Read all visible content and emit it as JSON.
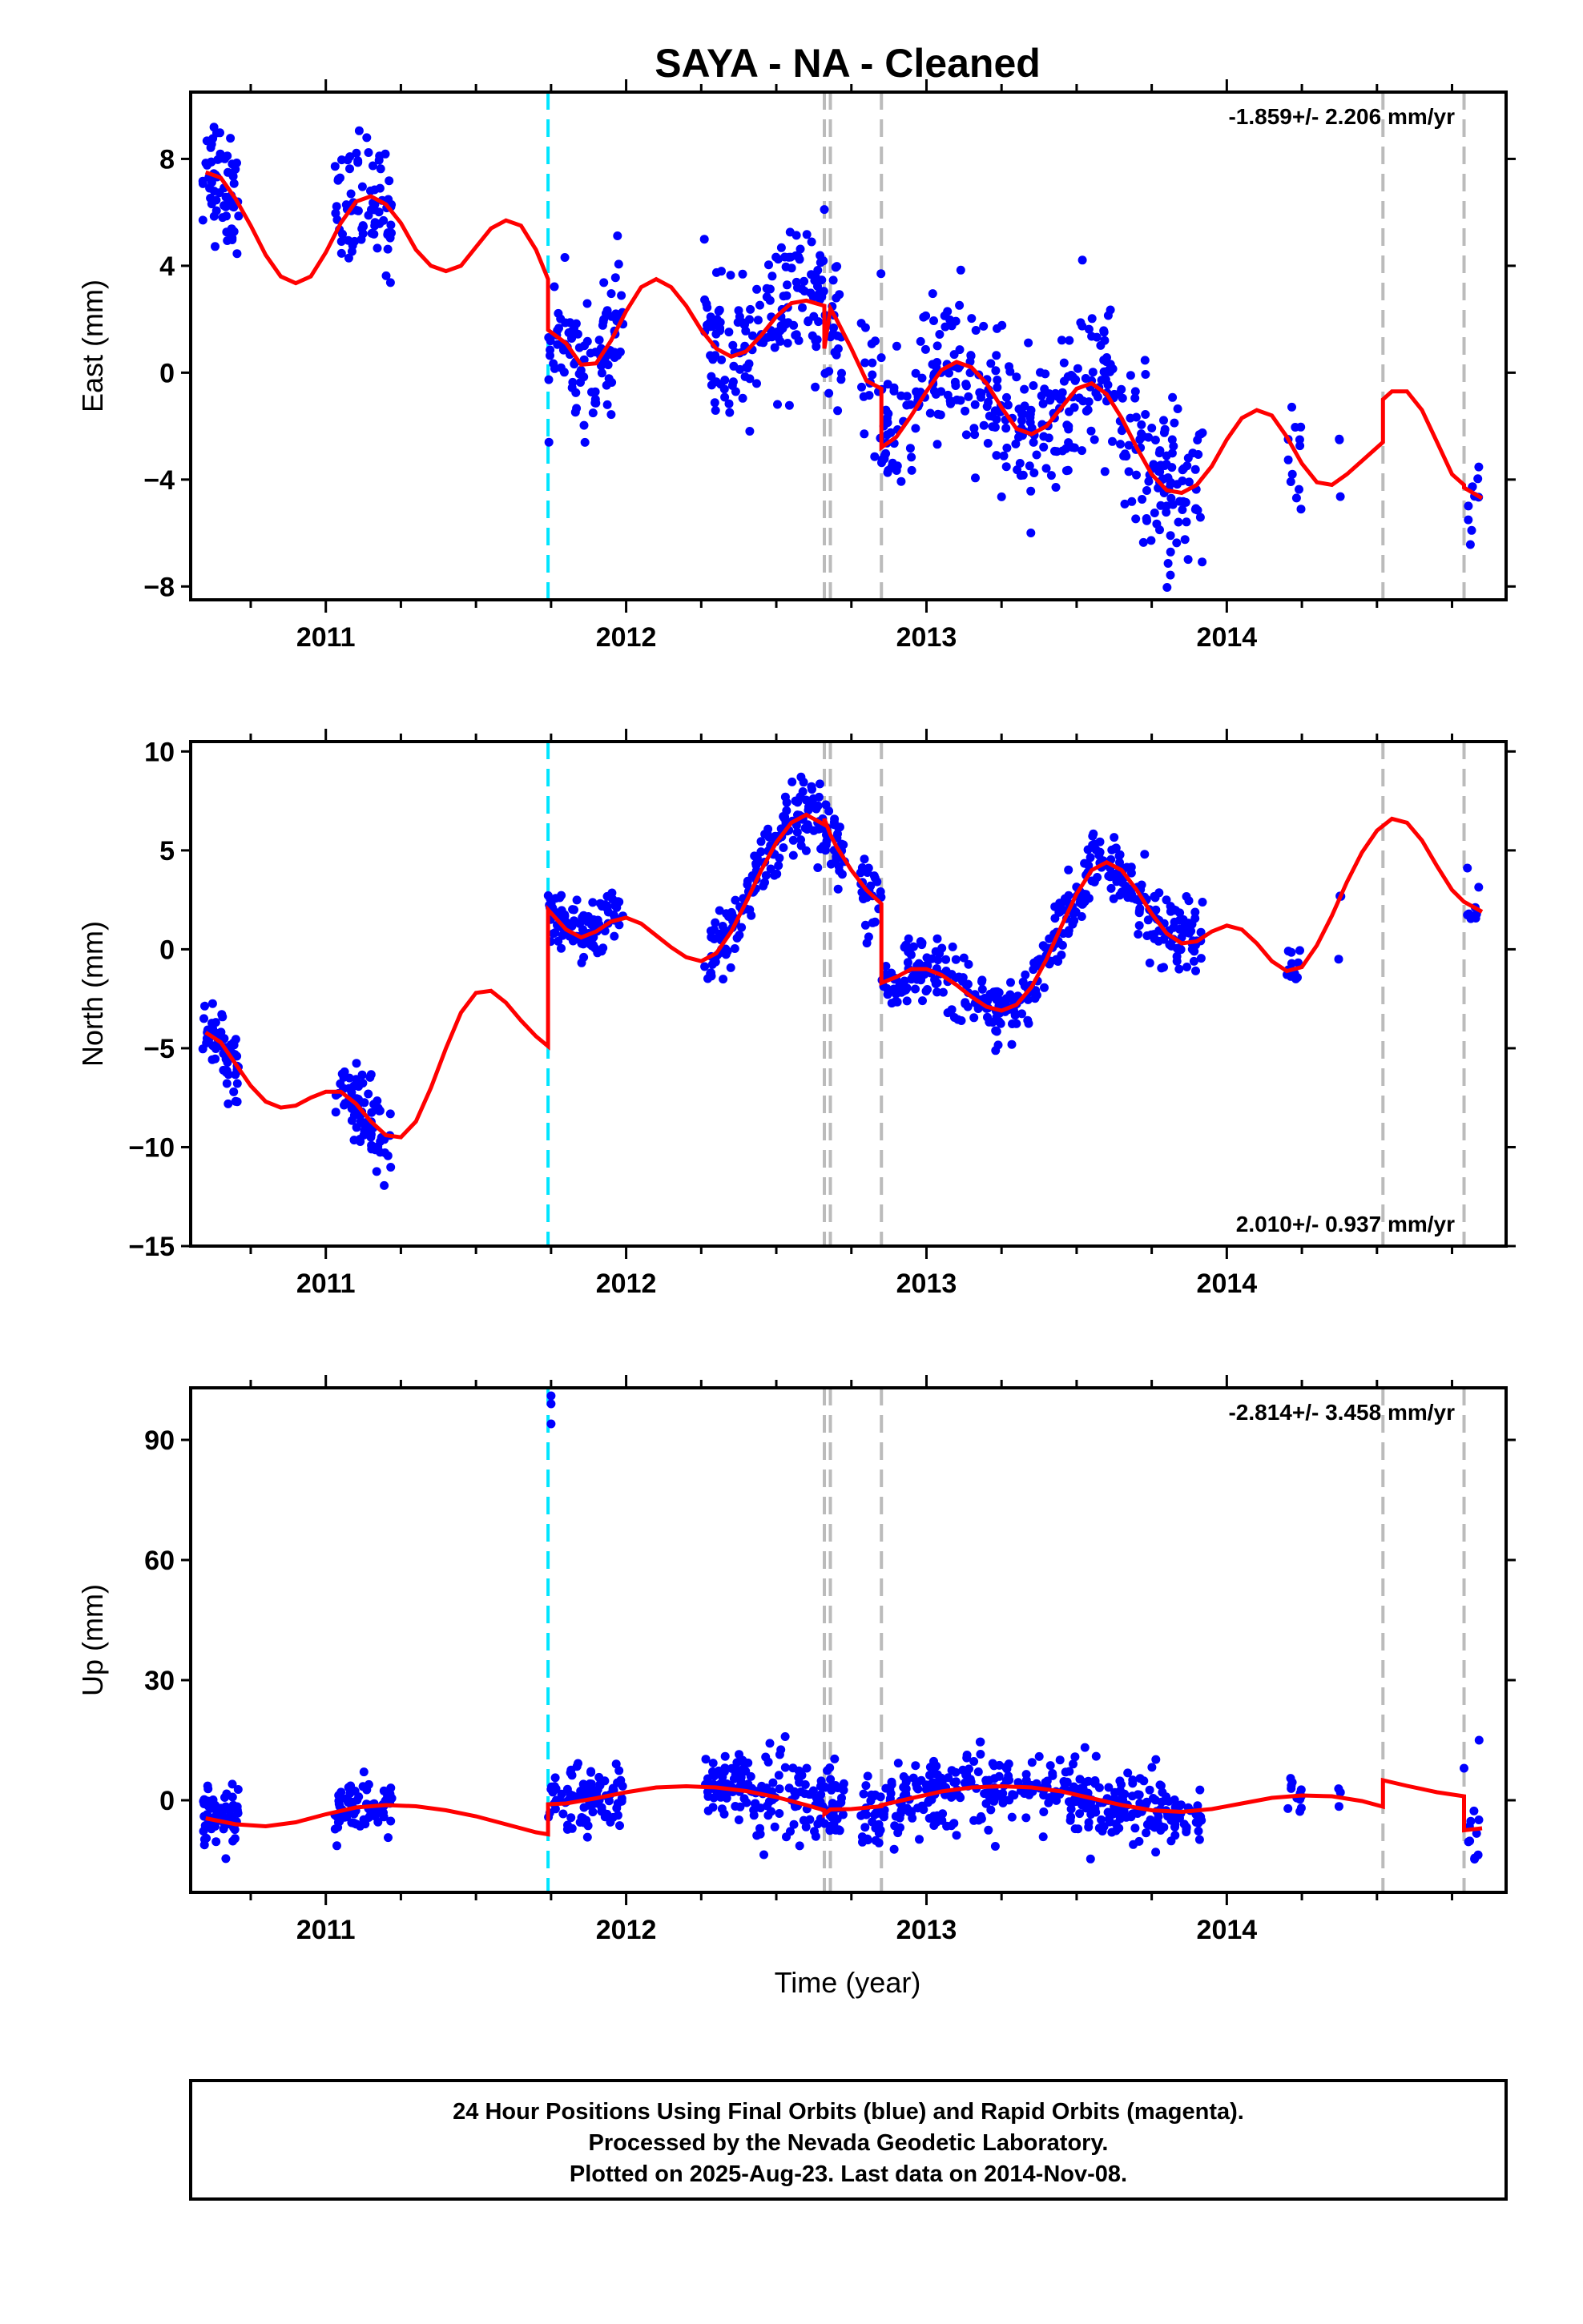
{
  "title": "SAYA  - NA - Cleaned",
  "colors": {
    "data_points": "#0000ff",
    "model_curve": "#ff0000",
    "equipment_change": "#00e5ff",
    "other_offsets": "#bbbbbb",
    "frame": "#000000"
  },
  "chart_data": [
    {
      "type": "scatter",
      "panel": "east",
      "ylabel": "East (mm)",
      "xlim": [
        2010.55,
        2014.93
      ],
      "ylim": [
        -8.5,
        10.5
      ],
      "yticks": [
        -8,
        -4,
        0,
        4,
        8
      ],
      "xtick_labels": [
        "2011",
        "2012",
        "2013",
        "2014"
      ],
      "rate_label": "-1.859+/- 2.206 mm/yr",
      "rate_position": "top-right",
      "offset_lines_cyan": [
        2011.74
      ],
      "offset_lines_gray": [
        2012.66,
        2012.68,
        2012.85,
        2014.52,
        2014.79
      ],
      "model_curve": [
        [
          2010.6,
          7.5
        ],
        [
          2010.65,
          7.3
        ],
        [
          2010.7,
          6.5
        ],
        [
          2010.75,
          5.5
        ],
        [
          2010.8,
          4.4
        ],
        [
          2010.85,
          3.6
        ],
        [
          2010.9,
          3.35
        ],
        [
          2010.95,
          3.6
        ],
        [
          2011.0,
          4.5
        ],
        [
          2011.05,
          5.6
        ],
        [
          2011.1,
          6.4
        ],
        [
          2011.15,
          6.6
        ],
        [
          2011.2,
          6.3
        ],
        [
          2011.25,
          5.6
        ],
        [
          2011.3,
          4.6
        ],
        [
          2011.35,
          4.0
        ],
        [
          2011.4,
          3.8
        ],
        [
          2011.45,
          4.0
        ],
        [
          2011.5,
          4.7
        ],
        [
          2011.55,
          5.4
        ],
        [
          2011.6,
          5.7
        ],
        [
          2011.65,
          5.5
        ],
        [
          2011.7,
          4.6
        ],
        [
          2011.74,
          3.5
        ],
        [
          2011.74,
          1.6
        ],
        [
          2011.8,
          1.1
        ],
        [
          2011.85,
          0.3
        ],
        [
          2011.9,
          0.35
        ],
        [
          2011.95,
          1.2
        ],
        [
          2012.0,
          2.3
        ],
        [
          2012.05,
          3.2
        ],
        [
          2012.1,
          3.5
        ],
        [
          2012.15,
          3.2
        ],
        [
          2012.2,
          2.5
        ],
        [
          2012.25,
          1.6
        ],
        [
          2012.3,
          0.9
        ],
        [
          2012.35,
          0.6
        ],
        [
          2012.4,
          0.8
        ],
        [
          2012.45,
          1.4
        ],
        [
          2012.5,
          2.1
        ],
        [
          2012.55,
          2.6
        ],
        [
          2012.6,
          2.7
        ],
        [
          2012.66,
          2.5
        ],
        [
          2012.66,
          0.9
        ],
        [
          2012.68,
          2.4
        ],
        [
          2012.7,
          2.0
        ],
        [
          2012.75,
          0.9
        ],
        [
          2012.8,
          -0.3
        ],
        [
          2012.85,
          -0.6
        ],
        [
          2012.85,
          -2.8
        ],
        [
          2012.9,
          -2.4
        ],
        [
          2012.95,
          -1.6
        ],
        [
          2013.0,
          -0.7
        ],
        [
          2013.05,
          0.1
        ],
        [
          2013.1,
          0.4
        ],
        [
          2013.15,
          0.2
        ],
        [
          2013.2,
          -0.4
        ],
        [
          2013.25,
          -1.3
        ],
        [
          2013.3,
          -2.1
        ],
        [
          2013.35,
          -2.3
        ],
        [
          2013.4,
          -2.0
        ],
        [
          2013.45,
          -1.3
        ],
        [
          2013.5,
          -0.6
        ],
        [
          2013.55,
          -0.4
        ],
        [
          2013.6,
          -0.8
        ],
        [
          2013.65,
          -1.7
        ],
        [
          2013.7,
          -2.8
        ],
        [
          2013.75,
          -3.8
        ],
        [
          2013.8,
          -4.4
        ],
        [
          2013.85,
          -4.5
        ],
        [
          2013.9,
          -4.2
        ],
        [
          2013.95,
          -3.5
        ],
        [
          2014.0,
          -2.5
        ],
        [
          2014.05,
          -1.7
        ],
        [
          2014.1,
          -1.4
        ],
        [
          2014.15,
          -1.6
        ],
        [
          2014.2,
          -2.4
        ],
        [
          2014.25,
          -3.4
        ],
        [
          2014.3,
          -4.1
        ],
        [
          2014.35,
          -4.2
        ],
        [
          2014.4,
          -3.8
        ],
        [
          2014.45,
          -3.3
        ],
        [
          2014.52,
          -2.6
        ],
        [
          2014.52,
          -1.0
        ],
        [
          2014.55,
          -0.7
        ],
        [
          2014.6,
          -0.7
        ],
        [
          2014.65,
          -1.4
        ],
        [
          2014.7,
          -2.6
        ],
        [
          2014.75,
          -3.8
        ],
        [
          2014.79,
          -4.2
        ],
        [
          2014.79,
          -4.3
        ],
        [
          2014.85,
          -4.7
        ]
      ],
      "observation_segments": [
        {
          "x_start": 2010.59,
          "x_end": 2010.71,
          "n": 65,
          "spread": 1.1
        },
        {
          "x_start": 2011.03,
          "x_end": 2011.22,
          "n": 75,
          "spread": 1.2
        },
        {
          "x_start": 2011.74,
          "x_end": 2011.99,
          "n": 100,
          "spread": 1.2
        },
        {
          "x_start": 2012.26,
          "x_end": 2012.73,
          "n": 180,
          "spread": 1.3
        },
        {
          "x_start": 2012.78,
          "x_end": 2013.43,
          "n": 220,
          "spread": 1.4
        },
        {
          "x_start": 2013.43,
          "x_end": 2013.92,
          "n": 190,
          "spread": 1.5
        },
        {
          "x_start": 2014.2,
          "x_end": 2014.25,
          "n": 12,
          "spread": 1.4
        },
        {
          "x_start": 2014.37,
          "x_end": 2014.38,
          "n": 3,
          "spread": 2.0
        },
        {
          "x_start": 2014.8,
          "x_end": 2014.84,
          "n": 10,
          "spread": 1.5
        }
      ]
    },
    {
      "type": "scatter",
      "panel": "north",
      "ylabel": "North (mm)",
      "xlim": [
        2010.55,
        2014.93
      ],
      "ylim": [
        -15,
        10.5
      ],
      "yticks": [
        -15,
        -10,
        -5,
        0,
        5,
        10
      ],
      "xtick_labels": [
        "2011",
        "2012",
        "2013",
        "2014"
      ],
      "rate_label": "2.010+/- 0.937 mm/yr",
      "rate_position": "bottom-right",
      "offset_lines_cyan": [
        2011.74
      ],
      "offset_lines_gray": [
        2012.66,
        2012.68,
        2012.85,
        2014.52,
        2014.79
      ],
      "model_curve": [
        [
          2010.6,
          -4.2
        ],
        [
          2010.65,
          -4.7
        ],
        [
          2010.7,
          -5.8
        ],
        [
          2010.75,
          -6.9
        ],
        [
          2010.8,
          -7.7
        ],
        [
          2010.85,
          -8.0
        ],
        [
          2010.9,
          -7.9
        ],
        [
          2010.95,
          -7.5
        ],
        [
          2011.0,
          -7.2
        ],
        [
          2011.05,
          -7.2
        ],
        [
          2011.1,
          -7.8
        ],
        [
          2011.15,
          -8.7
        ],
        [
          2011.2,
          -9.4
        ],
        [
          2011.25,
          -9.5
        ],
        [
          2011.3,
          -8.7
        ],
        [
          2011.35,
          -7.0
        ],
        [
          2011.4,
          -5.0
        ],
        [
          2011.45,
          -3.2
        ],
        [
          2011.5,
          -2.2
        ],
        [
          2011.55,
          -2.1
        ],
        [
          2011.6,
          -2.7
        ],
        [
          2011.65,
          -3.6
        ],
        [
          2011.7,
          -4.4
        ],
        [
          2011.74,
          -4.9
        ],
        [
          2011.74,
          2.0
        ],
        [
          2011.8,
          1.0
        ],
        [
          2011.85,
          0.6
        ],
        [
          2011.9,
          0.9
        ],
        [
          2011.95,
          1.4
        ],
        [
          2012.0,
          1.6
        ],
        [
          2012.05,
          1.3
        ],
        [
          2012.1,
          0.7
        ],
        [
          2012.15,
          0.1
        ],
        [
          2012.2,
          -0.4
        ],
        [
          2012.25,
          -0.6
        ],
        [
          2012.3,
          -0.2
        ],
        [
          2012.35,
          0.9
        ],
        [
          2012.4,
          2.4
        ],
        [
          2012.45,
          4.0
        ],
        [
          2012.5,
          5.4
        ],
        [
          2012.55,
          6.4
        ],
        [
          2012.6,
          6.8
        ],
        [
          2012.66,
          6.3
        ],
        [
          2012.66,
          6.6
        ],
        [
          2012.68,
          5.8
        ],
        [
          2012.7,
          5.2
        ],
        [
          2012.75,
          4.0
        ],
        [
          2012.8,
          3.0
        ],
        [
          2012.85,
          2.3
        ],
        [
          2012.85,
          -1.7
        ],
        [
          2012.9,
          -1.4
        ],
        [
          2012.95,
          -1.0
        ],
        [
          2013.0,
          -1.0
        ],
        [
          2013.05,
          -1.3
        ],
        [
          2013.1,
          -1.8
        ],
        [
          2013.15,
          -2.4
        ],
        [
          2013.2,
          -2.9
        ],
        [
          2013.25,
          -3.1
        ],
        [
          2013.3,
          -2.8
        ],
        [
          2013.35,
          -1.9
        ],
        [
          2013.4,
          -0.5
        ],
        [
          2013.45,
          1.2
        ],
        [
          2013.5,
          2.8
        ],
        [
          2013.55,
          4.0
        ],
        [
          2013.6,
          4.4
        ],
        [
          2013.65,
          4.0
        ],
        [
          2013.7,
          3.0
        ],
        [
          2013.75,
          1.8
        ],
        [
          2013.8,
          0.8
        ],
        [
          2013.85,
          0.3
        ],
        [
          2013.9,
          0.4
        ],
        [
          2013.95,
          0.9
        ],
        [
          2014.0,
          1.2
        ],
        [
          2014.05,
          1.0
        ],
        [
          2014.1,
          0.3
        ],
        [
          2014.15,
          -0.6
        ],
        [
          2014.2,
          -1.1
        ],
        [
          2014.25,
          -0.9
        ],
        [
          2014.3,
          0.2
        ],
        [
          2014.35,
          1.7
        ],
        [
          2014.4,
          3.4
        ],
        [
          2014.45,
          4.9
        ],
        [
          2014.5,
          6.0
        ],
        [
          2014.55,
          6.6
        ],
        [
          2014.6,
          6.4
        ],
        [
          2014.65,
          5.5
        ],
        [
          2014.7,
          4.2
        ],
        [
          2014.75,
          3.0
        ],
        [
          2014.79,
          2.4
        ],
        [
          2014.85,
          1.9
        ]
      ],
      "observation_segments": [
        {
          "x_start": 2010.59,
          "x_end": 2010.71,
          "n": 65,
          "spread": 0.9
        },
        {
          "x_start": 2011.03,
          "x_end": 2011.22,
          "n": 75,
          "spread": 1.0
        },
        {
          "x_start": 2011.74,
          "x_end": 2011.99,
          "n": 100,
          "spread": 0.8
        },
        {
          "x_start": 2012.26,
          "x_end": 2012.73,
          "n": 180,
          "spread": 0.9
        },
        {
          "x_start": 2012.78,
          "x_end": 2013.43,
          "n": 220,
          "spread": 0.8
        },
        {
          "x_start": 2013.43,
          "x_end": 2013.92,
          "n": 190,
          "spread": 0.9
        },
        {
          "x_start": 2014.2,
          "x_end": 2014.25,
          "n": 12,
          "spread": 0.8
        },
        {
          "x_start": 2014.37,
          "x_end": 2014.38,
          "n": 3,
          "spread": 1.2
        },
        {
          "x_start": 2014.8,
          "x_end": 2014.84,
          "n": 10,
          "spread": 1.0
        }
      ]
    },
    {
      "type": "scatter",
      "panel": "up",
      "ylabel": "Up (mm)",
      "xlabel": "Time (year)",
      "xlim": [
        2010.55,
        2014.93
      ],
      "ylim": [
        -23,
        103
      ],
      "yticks": [
        0,
        30,
        60,
        90
      ],
      "xtick_labels": [
        "2011",
        "2012",
        "2013",
        "2014"
      ],
      "rate_label": "-2.814+/- 3.458 mm/yr",
      "rate_position": "top-right",
      "offset_lines_cyan": [
        2011.74
      ],
      "offset_lines_gray": [
        2012.66,
        2012.68,
        2012.85,
        2014.52,
        2014.79
      ],
      "model_curve": [
        [
          2010.6,
          -4.5
        ],
        [
          2010.7,
          -6.0
        ],
        [
          2010.8,
          -6.5
        ],
        [
          2010.9,
          -5.5
        ],
        [
          2011.0,
          -3.5
        ],
        [
          2011.1,
          -1.8
        ],
        [
          2011.2,
          -1.2
        ],
        [
          2011.3,
          -1.5
        ],
        [
          2011.4,
          -2.5
        ],
        [
          2011.5,
          -4.0
        ],
        [
          2011.6,
          -6.0
        ],
        [
          2011.7,
          -8.0
        ],
        [
          2011.74,
          -8.5
        ],
        [
          2011.74,
          -1.0
        ],
        [
          2011.8,
          -0.8
        ],
        [
          2011.9,
          0.5
        ],
        [
          2012.0,
          2.0
        ],
        [
          2012.1,
          3.2
        ],
        [
          2012.2,
          3.5
        ],
        [
          2012.3,
          3.2
        ],
        [
          2012.4,
          2.3
        ],
        [
          2012.5,
          0.8
        ],
        [
          2012.6,
          -1.2
        ],
        [
          2012.66,
          -2.5
        ],
        [
          2012.66,
          -3.5
        ],
        [
          2012.68,
          -2.3
        ],
        [
          2012.75,
          -2.2
        ],
        [
          2012.85,
          -1.5
        ],
        [
          2012.85,
          -1.2
        ],
        [
          2012.95,
          0.5
        ],
        [
          2013.05,
          2.2
        ],
        [
          2013.15,
          3.2
        ],
        [
          2013.25,
          3.5
        ],
        [
          2013.35,
          3.2
        ],
        [
          2013.45,
          2.2
        ],
        [
          2013.55,
          0.5
        ],
        [
          2013.65,
          -1.2
        ],
        [
          2013.75,
          -2.5
        ],
        [
          2013.85,
          -2.9
        ],
        [
          2013.95,
          -2.2
        ],
        [
          2014.05,
          -0.8
        ],
        [
          2014.15,
          0.6
        ],
        [
          2014.25,
          1.2
        ],
        [
          2014.35,
          1.0
        ],
        [
          2014.45,
          -0.2
        ],
        [
          2014.52,
          -1.6
        ],
        [
          2014.52,
          5.0
        ],
        [
          2014.6,
          3.6
        ],
        [
          2014.7,
          2.0
        ],
        [
          2014.79,
          1.0
        ],
        [
          2014.79,
          -7.5
        ],
        [
          2014.85,
          -7.0
        ]
      ],
      "observation_segments": [
        {
          "x_start": 2010.59,
          "x_end": 2010.71,
          "n": 65,
          "spread": 4.5
        },
        {
          "x_start": 2011.03,
          "x_end": 2011.22,
          "n": 75,
          "spread": 3.5
        },
        {
          "x_start": 2011.74,
          "x_end": 2011.99,
          "n": 100,
          "spread": 4.5
        },
        {
          "x_start": 2012.26,
          "x_end": 2012.73,
          "n": 180,
          "spread": 5.0
        },
        {
          "x_start": 2012.78,
          "x_end": 2013.43,
          "n": 220,
          "spread": 4.5
        },
        {
          "x_start": 2013.43,
          "x_end": 2013.92,
          "n": 190,
          "spread": 4.5
        },
        {
          "x_start": 2014.2,
          "x_end": 2014.25,
          "n": 12,
          "spread": 3.0
        },
        {
          "x_start": 2014.37,
          "x_end": 2014.38,
          "n": 3,
          "spread": 4.0
        },
        {
          "x_start": 2014.8,
          "x_end": 2014.84,
          "n": 10,
          "spread": 5.0
        }
      ],
      "extra_points": [
        [
          2011.75,
          99
        ],
        [
          2011.75,
          101
        ],
        [
          2011.75,
          94
        ],
        [
          2014.84,
          15
        ],
        [
          2014.79,
          8
        ]
      ]
    }
  ],
  "footer": {
    "line1": "24 Hour Positions Using Final Orbits (blue) and Rapid Orbits (magenta).",
    "line2": "Processed by the Nevada Geodetic Laboratory.",
    "line3": "Plotted on 2025-Aug-23. Last data on 2014-Nov-08."
  }
}
